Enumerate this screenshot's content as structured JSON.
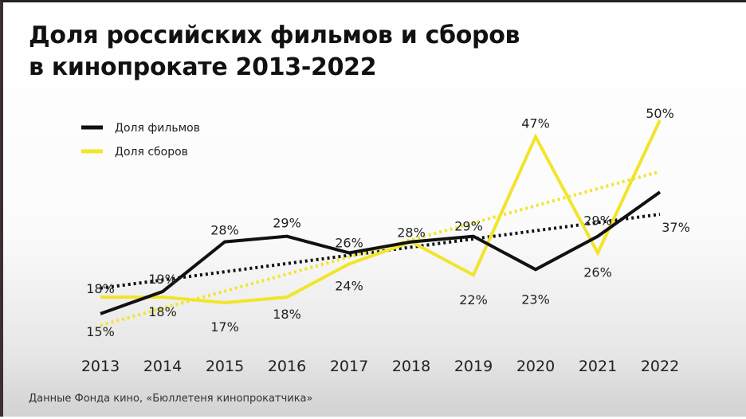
{
  "chart_data": {
    "type": "line",
    "title": [
      "Доля российских фильмов и сборов",
      "в кинопрокате 2013-2022"
    ],
    "categories": [
      "2013",
      "2014",
      "2015",
      "2016",
      "2017",
      "2018",
      "2019",
      "2020",
      "2021",
      "2022"
    ],
    "series": [
      {
        "name": "Доля фильмов",
        "color": "#111111",
        "values": [
          15,
          19,
          28,
          29,
          26,
          28,
          29,
          23,
          29,
          37
        ],
        "labels": [
          "15%",
          "19%",
          "28%",
          "29%",
          "26%",
          "28%",
          "29%",
          "23%",
          "29%",
          "37%"
        ]
      },
      {
        "name": "Доля сборов",
        "color": "#f2e42a",
        "values": [
          18,
          18,
          17,
          18,
          24,
          28,
          22,
          47,
          26,
          50
        ],
        "labels": [
          "18%",
          "18%",
          "17%",
          "18%",
          "24%",
          "",
          "22%",
          "47%",
          "26%",
          "50%"
        ]
      }
    ],
    "trendline": "linear, dotted, per series",
    "unit": "%",
    "grid": false,
    "legend_placement": "top-left",
    "source": "Данные Фонда кино, «Бюллетеня кинопрокатчика»"
  }
}
